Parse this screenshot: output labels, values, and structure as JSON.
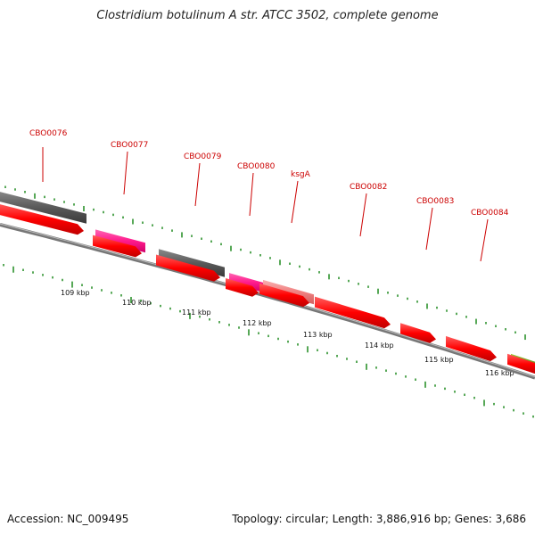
{
  "title": "Clostridium botulinum A str. ATCC 3502, complete genome",
  "footer": {
    "accession": "Accession: NC_009495",
    "summary": "Topology: circular; Length: 3,886,916 bp; Genes: 3,686"
  },
  "colors": {
    "cds": "#ff0000",
    "pseudo_gray": "#5a5a5a",
    "magenta": "#ff1a8c",
    "pink": "#f08080",
    "olive": "#6b8e23",
    "tick": "#1f8a1f",
    "backbone": "#888888",
    "label": "#cc0000"
  },
  "gene_labels": [
    {
      "label": "CBO0076"
    },
    {
      "label": "CBO0077"
    },
    {
      "label": "CBO0079"
    },
    {
      "label": "CBO0080"
    },
    {
      "label": "ksgA"
    },
    {
      "label": "CBO0082"
    },
    {
      "label": "CBO0083"
    },
    {
      "label": "CBO0084"
    }
  ],
  "tick_labels": [
    {
      "label": "109 kbp"
    },
    {
      "label": "110 kbp"
    },
    {
      "label": "111 kbp"
    },
    {
      "label": "112 kbp"
    },
    {
      "label": "113 kbp"
    },
    {
      "label": "114 kbp"
    },
    {
      "label": "115 kbp"
    },
    {
      "label": "116 kbp"
    }
  ]
}
